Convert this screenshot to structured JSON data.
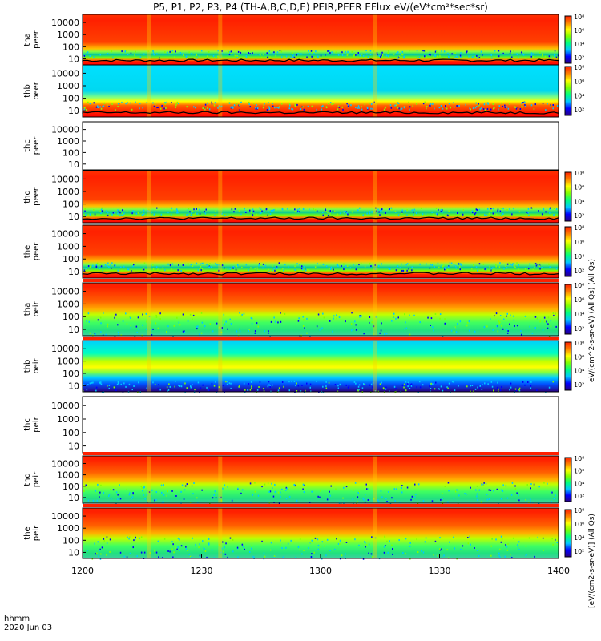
{
  "title": "P5, P1, P2, P3, P4 (TH-A,B,C,D,E) PEIR,PEER EFlux eV/(eV*cm²*sec*sr)",
  "x_axis": {
    "unit_label": "hhmm",
    "date_label": "2020 Jun 03",
    "tick_labels": [
      "1200",
      "1230",
      "1300",
      "1330",
      "1400"
    ]
  },
  "colorbar_labels": {
    "electron_units": "eV/(cm^2-s-sr-eV) (All Qs) (All Qs)",
    "ion_units": "[eV/(cm2-s-sr-eV)] (All Qs)",
    "tick_labels": [
      "10²",
      "10⁴",
      "10⁶",
      "10⁸"
    ]
  },
  "colors": {
    "colormap": [
      "#2a0080",
      "#0000ff",
      "#00c8ff",
      "#00ff80",
      "#80ff00",
      "#ffff00",
      "#ff8000",
      "#ff2000"
    ],
    "trace": "#000000"
  },
  "chart_data": [
    {
      "type": "heatmap",
      "panel": "tha_peer",
      "probe": "tha",
      "species": "peer",
      "ylabel": "tha\npeer",
      "x_range": [
        "1200",
        "1400"
      ],
      "y_ticks": [
        "10",
        "100",
        "1000",
        "10000"
      ],
      "y_scale": "log",
      "colorbar": true,
      "pattern": "electron-red",
      "has_data": true
    },
    {
      "type": "heatmap",
      "panel": "thb_peer",
      "probe": "thb",
      "species": "peer",
      "ylabel": "thb\npeer",
      "x_range": [
        "1200",
        "1400"
      ],
      "y_ticks": [
        "10",
        "100",
        "1000",
        "10000"
      ],
      "y_scale": "log",
      "colorbar": true,
      "pattern": "electron-cyan",
      "has_data": true
    },
    {
      "type": "heatmap",
      "panel": "thc_peer",
      "probe": "thc",
      "species": "peer",
      "ylabel": "thc\npeer",
      "x_range": [
        "1200",
        "1400"
      ],
      "y_ticks": [
        "10",
        "100",
        "1000",
        "10000"
      ],
      "y_scale": "log",
      "colorbar": false,
      "pattern": "empty",
      "has_data": false
    },
    {
      "type": "heatmap",
      "panel": "thd_peer",
      "probe": "thd",
      "species": "peer",
      "ylabel": "thd\npeer",
      "x_range": [
        "1200",
        "1400"
      ],
      "y_ticks": [
        "10",
        "100",
        "1000",
        "10000"
      ],
      "y_scale": "log",
      "colorbar": true,
      "pattern": "electron-red",
      "has_data": true
    },
    {
      "type": "heatmap",
      "panel": "the_peer",
      "probe": "the",
      "species": "peer",
      "ylabel": "the\npeer",
      "x_range": [
        "1200",
        "1400"
      ],
      "y_ticks": [
        "10",
        "100",
        "1000",
        "10000"
      ],
      "y_scale": "log",
      "colorbar": true,
      "pattern": "electron-red",
      "has_data": true
    },
    {
      "type": "heatmap",
      "panel": "tha_peir",
      "probe": "tha",
      "species": "peir",
      "ylabel": "tha\npeir",
      "x_range": [
        "1200",
        "1400"
      ],
      "y_ticks": [
        "10",
        "100",
        "1000",
        "10000"
      ],
      "y_scale": "log",
      "colorbar": true,
      "pattern": "ion-red",
      "has_data": true
    },
    {
      "type": "heatmap",
      "panel": "thb_peir",
      "probe": "thb",
      "species": "peir",
      "ylabel": "thb\npeir",
      "x_range": [
        "1200",
        "1400"
      ],
      "y_ticks": [
        "10",
        "100",
        "1000",
        "10000"
      ],
      "y_scale": "log",
      "colorbar": true,
      "pattern": "ion-cyan",
      "has_data": true
    },
    {
      "type": "heatmap",
      "panel": "thc_peir",
      "probe": "thc",
      "species": "peir",
      "ylabel": "thc\npeir",
      "x_range": [
        "1200",
        "1400"
      ],
      "y_ticks": [
        "10",
        "100",
        "1000",
        "10000"
      ],
      "y_scale": "log",
      "colorbar": false,
      "pattern": "empty",
      "has_data": false
    },
    {
      "type": "heatmap",
      "panel": "thd_peir",
      "probe": "thd",
      "species": "peir",
      "ylabel": "thd\npeir",
      "x_range": [
        "1200",
        "1400"
      ],
      "y_ticks": [
        "10",
        "100",
        "1000",
        "10000"
      ],
      "y_scale": "log",
      "colorbar": true,
      "pattern": "ion-red",
      "has_data": true
    },
    {
      "type": "heatmap",
      "panel": "the_peir",
      "probe": "the",
      "species": "peir",
      "ylabel": "the\npeir",
      "x_range": [
        "1200",
        "1400"
      ],
      "y_ticks": [
        "10",
        "100",
        "1000",
        "10000"
      ],
      "y_scale": "log",
      "colorbar": true,
      "pattern": "ion-red",
      "has_data": true
    }
  ]
}
